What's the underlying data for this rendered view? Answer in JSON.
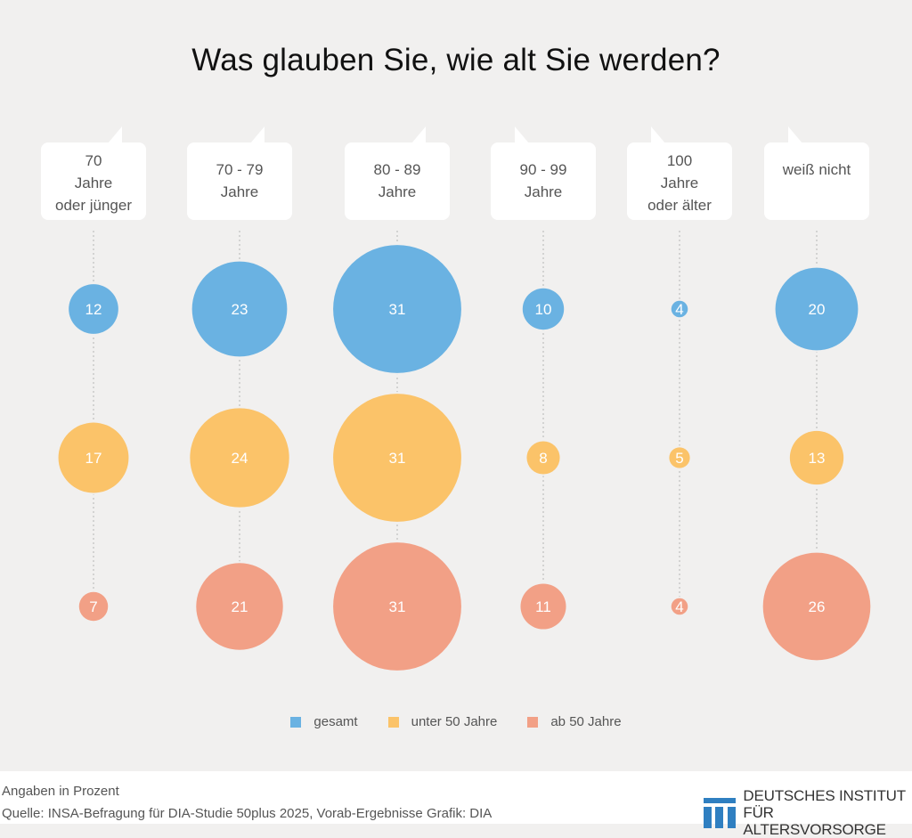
{
  "title": "Was glauben Sie, wie alt Sie werden?",
  "colors": {
    "background": "#f1f0ef",
    "gesamt": "#6ab2e2",
    "unter50": "#fbc369",
    "ab50": "#f2a086",
    "label_box": "#ffffff",
    "connector": "#c9c9c9"
  },
  "chart_data": {
    "type": "bubble",
    "title": "Was glauben Sie, wie alt Sie werden?",
    "unit": "Prozent",
    "categories": [
      [
        "70",
        "Jahre",
        "oder jünger"
      ],
      [
        "70 - 79",
        "Jahre"
      ],
      [
        "80 - 89",
        "Jahre"
      ],
      [
        "90 - 99",
        "Jahre"
      ],
      [
        "100",
        "Jahre",
        "oder älter"
      ],
      [
        "weiß nicht"
      ]
    ],
    "series": [
      {
        "name": "gesamt",
        "color": "#6ab2e2",
        "values": [
          12,
          23,
          31,
          10,
          4,
          20
        ]
      },
      {
        "name": "unter 50 Jahre",
        "color": "#fbc369",
        "values": [
          17,
          24,
          31,
          8,
          5,
          13
        ]
      },
      {
        "name": "ab 50 Jahre",
        "color": "#f2a086",
        "values": [
          7,
          21,
          31,
          11,
          4,
          26
        ]
      }
    ],
    "legend_position": "bottom-center"
  },
  "legend": [
    {
      "label": "gesamt",
      "color": "#6ab2e2"
    },
    {
      "label": "unter 50 Jahre",
      "color": "#fbc369"
    },
    {
      "label": "ab 50 Jahre",
      "color": "#f2a086"
    }
  ],
  "footer": {
    "note": "Angaben in Prozent",
    "source": "Quelle: INSA-Befragung für DIA-Studie 50plus 2025, Vorab-Ergebnisse  Grafik: DIA",
    "logo_line1": "DEUTSCHES INSTITUT",
    "logo_line2": "FÜR ALTERSVORSORGE"
  }
}
